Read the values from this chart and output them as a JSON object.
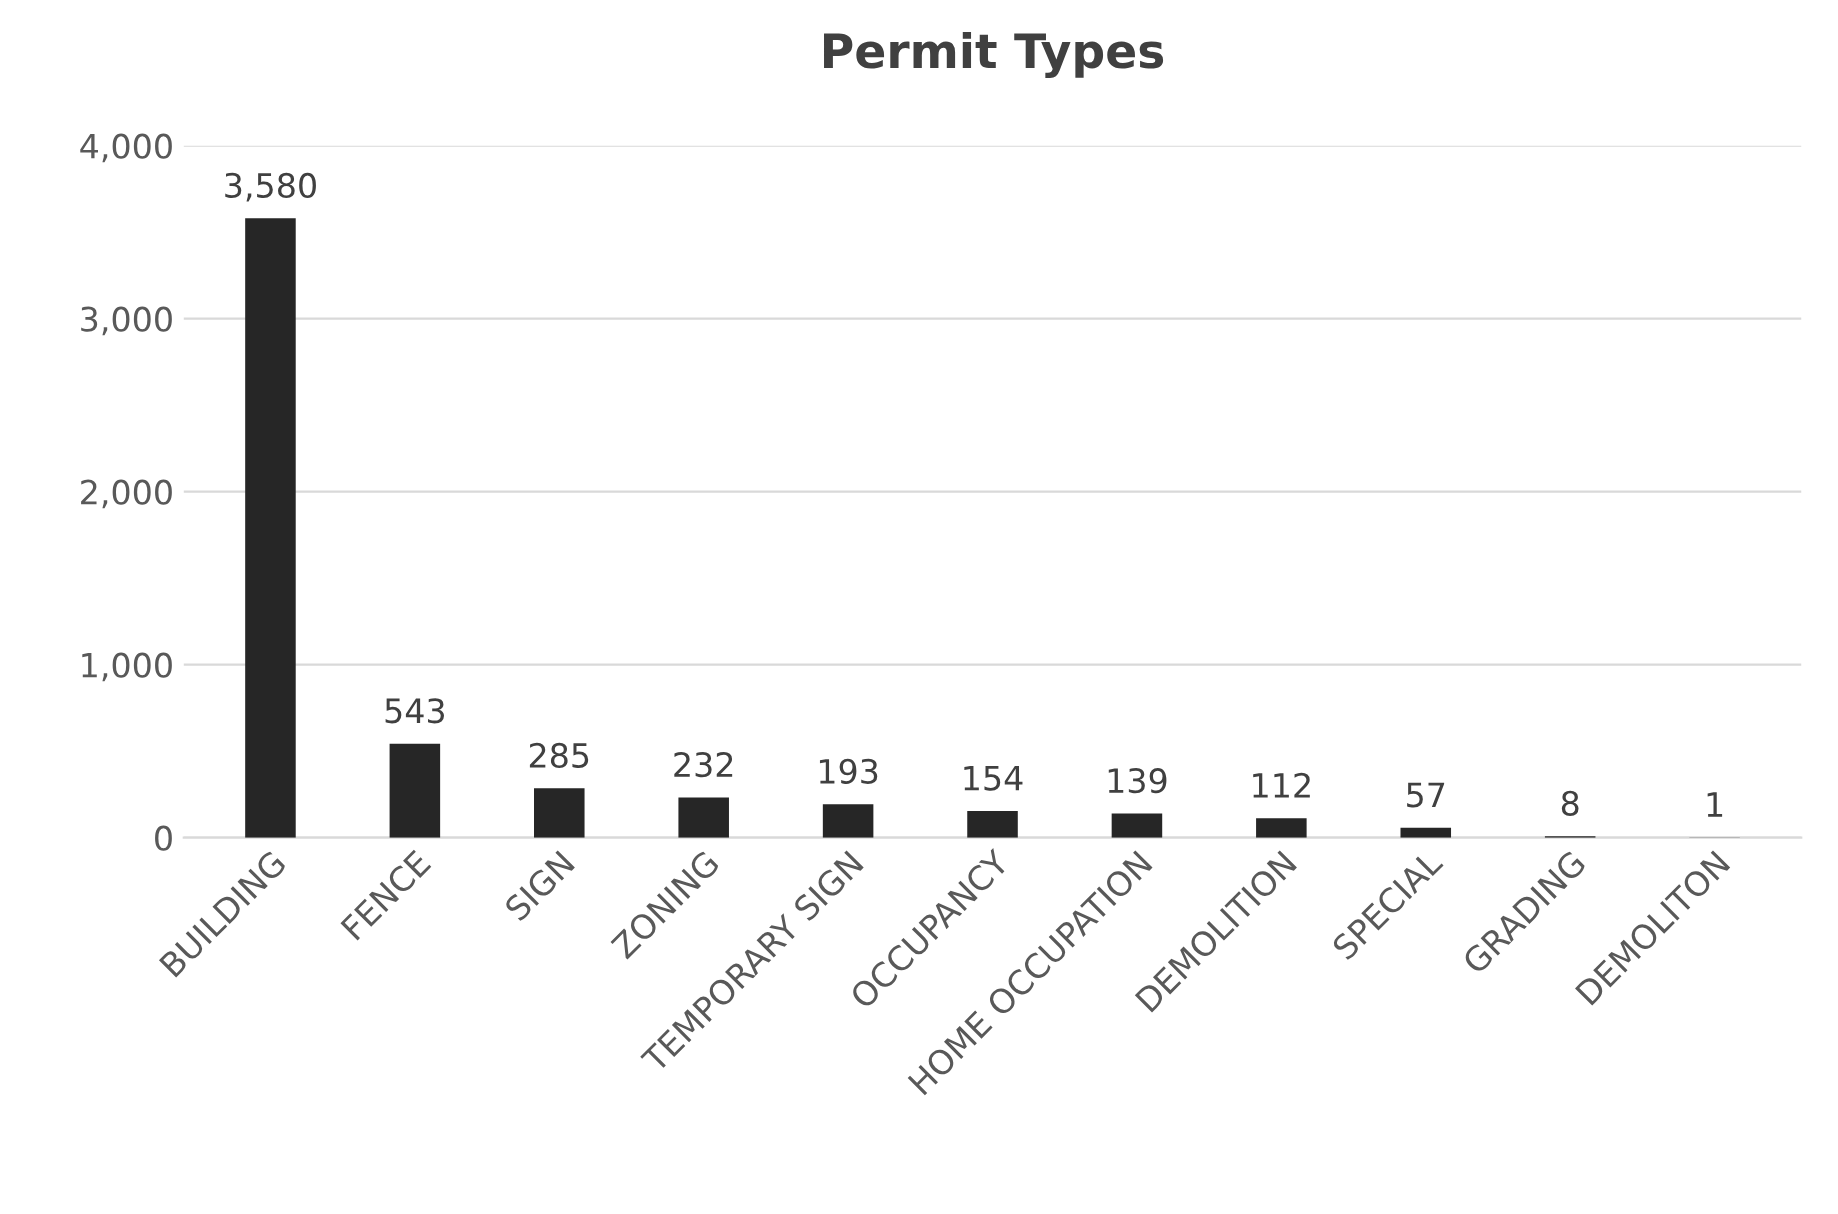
{
  "chart_data": {
    "type": "bar",
    "title": "Permit Types",
    "categories": [
      "BUILDING",
      "FENCE",
      "SIGN",
      "ZONING",
      "TEMPORARY SIGN",
      "OCCUPANCY",
      "HOME OCCUPATION",
      "DEMOLITION",
      "SPECIAL",
      "GRADING",
      "DEMOLITON"
    ],
    "values": [
      3580,
      543,
      285,
      232,
      193,
      154,
      139,
      112,
      57,
      8,
      1
    ],
    "color": "#262626",
    "ylim": [
      0,
      4000
    ],
    "yticks": [
      {
        "value": 0,
        "label": "0"
      },
      {
        "value": 1000,
        "label": "1,000"
      },
      {
        "value": 2000,
        "label": "2,000"
      },
      {
        "value": 3000,
        "label": "3,000"
      },
      {
        "value": 4000,
        "label": "4,000"
      }
    ],
    "grid": "y",
    "value_labels": [
      "3,580",
      "543",
      "285",
      "232",
      "193",
      "154",
      "139",
      "112",
      "57",
      "8",
      "1"
    ]
  }
}
